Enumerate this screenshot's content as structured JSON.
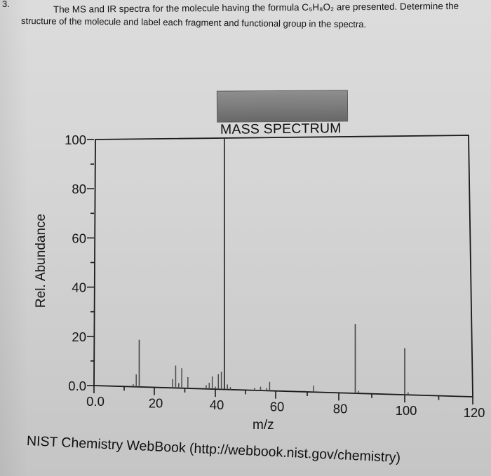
{
  "problem": {
    "number": "3.",
    "line1": "The MS and IR spectra for the molecule having the formula C₅H₈O₂ are presented. Determine the",
    "line2": "structure of the molecule and label each fragment and functional group in the spectra."
  },
  "chart_data": {
    "type": "bar",
    "title": "MASS SPECTRUM",
    "xlabel": "m/z",
    "ylabel": "Rel. Abundance",
    "xlim": [
      0,
      120
    ],
    "ylim": [
      0,
      100
    ],
    "xticks": [
      0,
      20,
      40,
      60,
      80,
      100,
      120
    ],
    "xtick_labels": [
      "0.0",
      "20",
      "40",
      "60",
      "80",
      "100",
      "120"
    ],
    "yticks": [
      0,
      20,
      40,
      60,
      80,
      100
    ],
    "ytick_labels": [
      "0.0",
      "20",
      "40",
      "60",
      "80",
      "100"
    ],
    "grid": false,
    "legend": null,
    "x": [
      13,
      14,
      15,
      26,
      27,
      28,
      29,
      31,
      37,
      38,
      39,
      40,
      41,
      42,
      43,
      44,
      45,
      53,
      55,
      57,
      58,
      69,
      72,
      85,
      86,
      100,
      101
    ],
    "values": [
      1,
      5,
      19,
      3.5,
      9,
      2,
      8,
      4.5,
      1.5,
      2.5,
      5,
      1,
      6,
      7,
      100,
      2,
      1,
      1,
      1.5,
      1,
      3.5,
      0.5,
      2.5,
      27,
      1,
      18,
      1
    ]
  },
  "source": "NIST Chemistry WebBook (http://webbook.nist.gov/chemistry)"
}
